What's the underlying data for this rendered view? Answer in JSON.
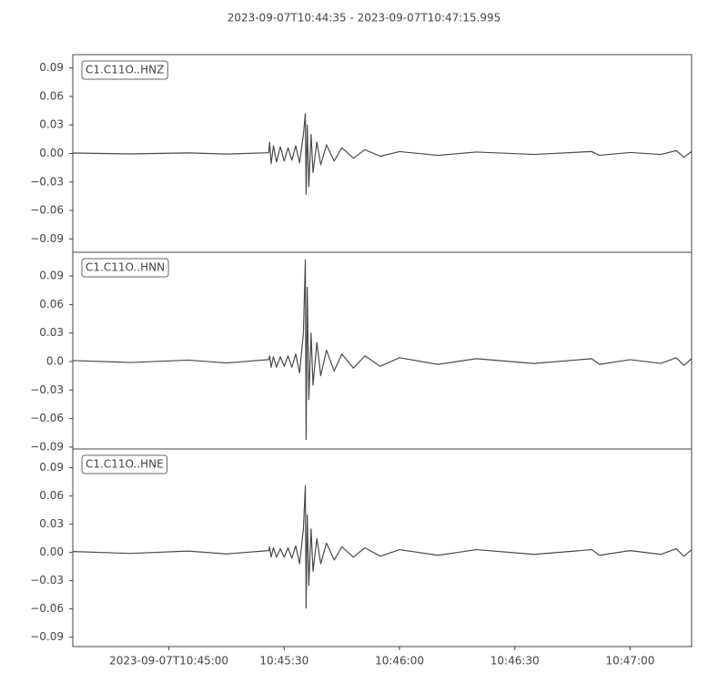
{
  "chart_data": [
    {
      "type": "line",
      "title": "2023-09-07T10:44:35  -  2023-09-07T10:47:15.995",
      "xlim": [
        "10:44:35",
        "10:47:15.995"
      ],
      "ylim": [
        -0.104,
        0.104
      ],
      "yticks": [
        {
          "value": -0.09,
          "label": "−0.09"
        },
        {
          "value": -0.06,
          "label": "−0.06"
        },
        {
          "value": -0.03,
          "label": "−0.03"
        },
        {
          "value": 0,
          "label": "0.00"
        },
        0.03,
        0.06,
        0.09
      ],
      "series": [
        {
          "name": "C1.C11O..HNZ",
          "color": "#4a4a4a",
          "x": [
            "10:44:35",
            "10:44:50",
            "10:45:05",
            "10:45:15",
            "10:45:26",
            "10:45:26.2",
            "10:45:26.6",
            "10:45:27.2",
            "10:45:28",
            "10:45:29",
            "10:45:30",
            "10:45:31",
            "10:45:32",
            "10:45:33",
            "10:45:34",
            "10:45:35",
            "10:45:35.5",
            "10:45:35.7",
            "10:45:36",
            "10:45:36.4",
            "10:45:37",
            "10:45:37.5",
            "10:45:38.5",
            "10:45:39.5",
            "10:45:41",
            "10:45:43",
            "10:45:45",
            "10:45:48",
            "10:45:51",
            "10:45:55",
            "10:46:00",
            "10:46:10",
            "10:46:20",
            "10:46:35",
            "10:46:50",
            "10:46:52",
            "10:47:00",
            "10:47:08",
            "10:47:12",
            "10:47:14",
            "10:47:15.995"
          ],
          "values": [
            0.0005,
            -0.0005,
            0.0006,
            -0.0006,
            0.0008,
            0.012,
            -0.011,
            0.008,
            -0.009,
            0.007,
            -0.008,
            0.006,
            -0.007,
            0.008,
            -0.01,
            0.02,
            0.042,
            -0.043,
            0.03,
            -0.035,
            0.02,
            -0.02,
            0.012,
            -0.012,
            0.009,
            -0.008,
            0.006,
            -0.005,
            0.004,
            -0.003,
            0.002,
            -0.002,
            0.0015,
            -0.001,
            0.002,
            -0.002,
            0.001,
            -0.001,
            0.003,
            -0.004,
            0.002
          ]
        }
      ]
    },
    {
      "type": "line",
      "xlim": [
        "10:44:35",
        "10:47:15.995"
      ],
      "ylim": [
        -0.092,
        0.115
      ],
      "yticks": [
        {
          "value": -0.09,
          "label": "−0.09"
        },
        {
          "value": -0.06,
          "label": "−0.06"
        },
        {
          "value": -0.03,
          "label": "−0.03"
        },
        {
          "value": 0,
          "label": "0.0"
        },
        0.03,
        0.06,
        0.09
      ],
      "series": [
        {
          "name": "C1.C11O..HNN",
          "color": "#4a4a4a",
          "x": [
            "10:44:35",
            "10:44:50",
            "10:45:05",
            "10:45:15",
            "10:45:26",
            "10:45:26.2",
            "10:45:26.6",
            "10:45:27.2",
            "10:45:28",
            "10:45:29",
            "10:45:30",
            "10:45:31",
            "10:45:32",
            "10:45:33",
            "10:45:34",
            "10:45:35",
            "10:45:35.5",
            "10:45:35.7",
            "10:45:36",
            "10:45:36.4",
            "10:45:37",
            "10:45:37.5",
            "10:45:38.5",
            "10:45:39.5",
            "10:45:41",
            "10:45:43",
            "10:45:45",
            "10:45:48",
            "10:45:51",
            "10:45:55",
            "10:46:00",
            "10:46:10",
            "10:46:20",
            "10:46:35",
            "10:46:50",
            "10:46:52",
            "10:47:00",
            "10:47:08",
            "10:47:12",
            "10:47:14",
            "10:47:15.995"
          ],
          "values": [
            0.001,
            -0.001,
            0.0015,
            -0.0015,
            0.002,
            0.006,
            -0.006,
            0.005,
            -0.006,
            0.005,
            -0.005,
            0.006,
            -0.006,
            0.008,
            -0.012,
            0.03,
            0.107,
            -0.082,
            0.078,
            -0.04,
            0.03,
            -0.025,
            0.02,
            -0.015,
            0.012,
            -0.01,
            0.008,
            -0.007,
            0.006,
            -0.005,
            0.004,
            -0.003,
            0.003,
            -0.002,
            0.003,
            -0.003,
            0.002,
            -0.002,
            0.004,
            -0.004,
            0.003
          ]
        }
      ]
    },
    {
      "type": "line",
      "xlim": [
        "10:44:35",
        "10:47:15.995"
      ],
      "ylim": [
        -0.1,
        0.11
      ],
      "yticks": [
        {
          "value": -0.09,
          "label": "−0.09"
        },
        {
          "value": -0.06,
          "label": "−0.06"
        },
        {
          "value": -0.03,
          "label": "−0.03"
        },
        {
          "value": 0,
          "label": "0.00"
        },
        0.03,
        0.06,
        0.09
      ],
      "xticks": [
        {
          "value": "10:45:00",
          "label": "2023-09-07T10:45:00"
        },
        {
          "value": "10:45:30",
          "label": "10:45:30"
        },
        {
          "value": "10:46:00",
          "label": "10:46:00"
        },
        {
          "value": "10:46:30",
          "label": "10:46:30"
        },
        {
          "value": "10:47:00",
          "label": "10:47:00"
        }
      ],
      "series": [
        {
          "name": "C1.C11O..HNE",
          "color": "#4a4a4a",
          "x": [
            "10:44:35",
            "10:44:50",
            "10:45:05",
            "10:45:15",
            "10:45:26",
            "10:45:26.2",
            "10:45:26.6",
            "10:45:27.2",
            "10:45:28",
            "10:45:29",
            "10:45:30",
            "10:45:31",
            "10:45:32",
            "10:45:33",
            "10:45:34",
            "10:45:35",
            "10:45:35.5",
            "10:45:35.7",
            "10:45:36",
            "10:45:36.4",
            "10:45:37",
            "10:45:37.5",
            "10:45:38.5",
            "10:45:39.5",
            "10:45:41",
            "10:45:43",
            "10:45:45",
            "10:45:48",
            "10:45:51",
            "10:45:55",
            "10:46:00",
            "10:46:10",
            "10:46:20",
            "10:46:35",
            "10:46:50",
            "10:46:52",
            "10:47:00",
            "10:47:08",
            "10:47:12",
            "10:47:14",
            "10:47:15.995"
          ],
          "values": [
            0.001,
            -0.001,
            0.0015,
            -0.0015,
            0.002,
            0.006,
            -0.005,
            0.005,
            -0.005,
            0.004,
            -0.005,
            0.005,
            -0.006,
            0.007,
            -0.012,
            0.025,
            0.071,
            -0.059,
            0.04,
            -0.035,
            0.025,
            -0.02,
            0.015,
            -0.012,
            0.01,
            -0.008,
            0.006,
            -0.005,
            0.005,
            -0.004,
            0.003,
            -0.003,
            0.003,
            -0.002,
            0.003,
            -0.003,
            0.002,
            -0.002,
            0.004,
            -0.004,
            0.003
          ]
        }
      ]
    }
  ]
}
